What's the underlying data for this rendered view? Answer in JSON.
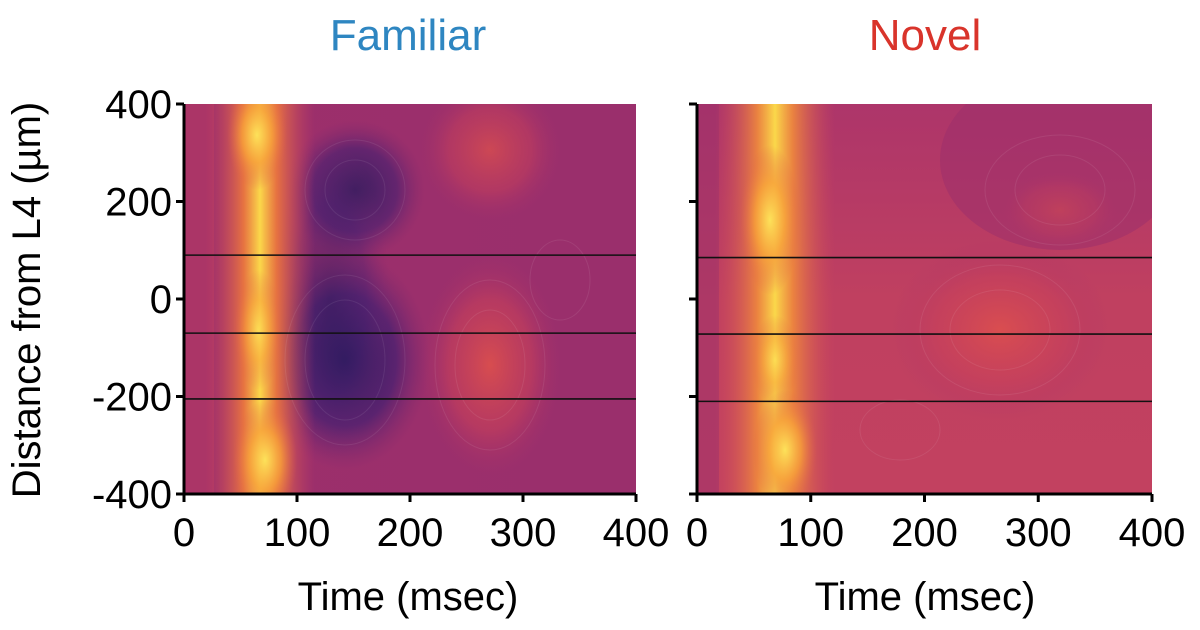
{
  "chart_data": [
    {
      "type": "heatmap",
      "title": "Familiar",
      "title_color": "#2e86c1",
      "xlabel": "Time (msec)",
      "ylabel": "Distance from L4 (µm)",
      "xlim": [
        0,
        400
      ],
      "ylim": [
        -400,
        400
      ],
      "xticks": [
        0,
        100,
        200,
        300,
        400
      ],
      "yticks": [
        400,
        200,
        0,
        -200,
        -400
      ],
      "xtick_labels": [
        "0",
        "100",
        "200",
        "300",
        "400"
      ],
      "ytick_labels": [
        "400",
        "200",
        "0",
        "-200",
        "-400"
      ],
      "layer_boundaries": [
        90,
        -70,
        -205
      ],
      "features": [
        {
          "kind": "sink",
          "t_center": 70,
          "t_width": 17,
          "depth_band": [
            -400,
            400
          ],
          "intensity": 1.0
        },
        {
          "kind": "source",
          "t_center": 150,
          "d_center": 220,
          "intensity": -0.6
        },
        {
          "kind": "source",
          "t_center": 150,
          "d_center": -130,
          "intensity": -0.9
        },
        {
          "kind": "sink",
          "t_center": 275,
          "d_center": -130,
          "intensity": 0.35
        },
        {
          "kind": "sink",
          "t_center": 280,
          "d_center": 320,
          "intensity": 0.35
        }
      ]
    },
    {
      "type": "heatmap",
      "title": "Novel",
      "title_color": "#d9342b",
      "xlabel": "Time (msec)",
      "ylabel": "",
      "xlim": [
        0,
        400
      ],
      "ylim": [
        -400,
        400
      ],
      "xticks": [
        0,
        100,
        200,
        300,
        400
      ],
      "yticks": [
        400,
        200,
        0,
        -200,
        -400
      ],
      "xtick_labels": [
        "0",
        "100",
        "200",
        "300",
        "400"
      ],
      "ytick_labels": [],
      "layer_boundaries": [
        85,
        -72,
        -210
      ],
      "features": [
        {
          "kind": "sink",
          "t_center": 68,
          "t_width": 20,
          "depth_band": [
            -400,
            400
          ],
          "intensity": 0.95
        },
        {
          "kind": "sink",
          "t_center": 280,
          "d_center": -50,
          "intensity": 0.3
        },
        {
          "kind": "sink",
          "t_center": 300,
          "d_center": 220,
          "intensity": 0.2
        }
      ]
    }
  ]
}
